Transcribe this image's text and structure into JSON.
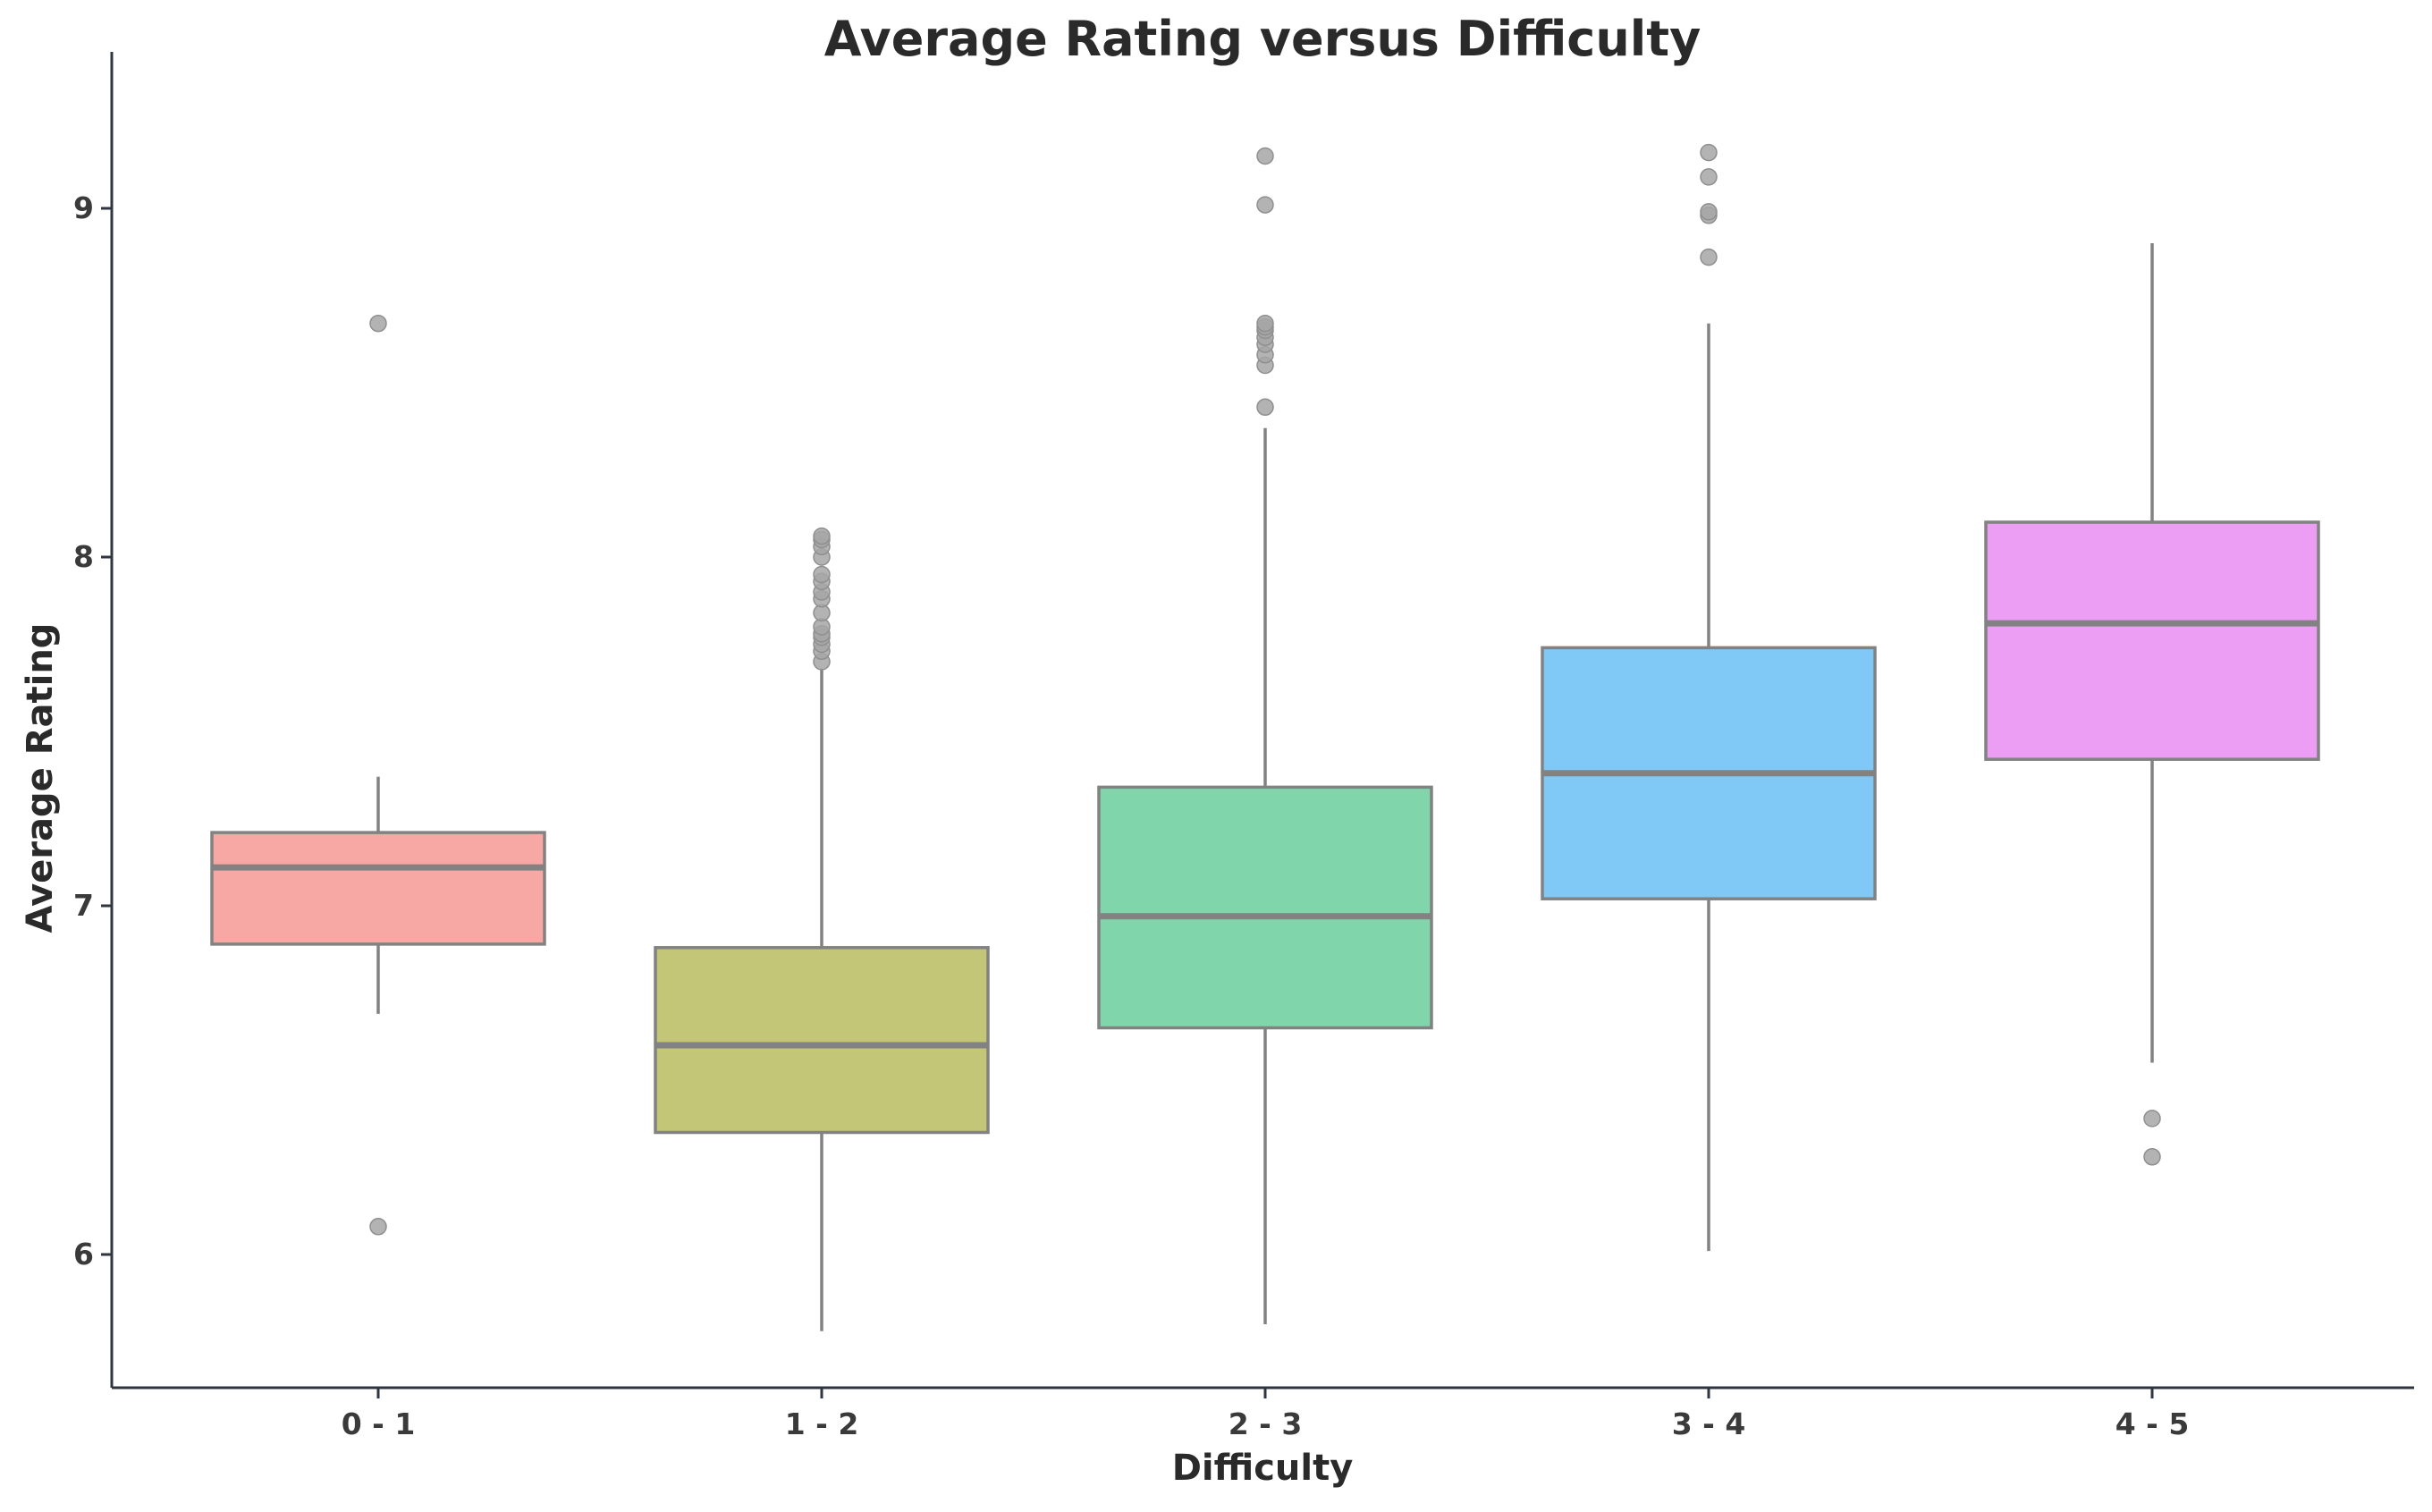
{
  "chart_data": {
    "type": "box",
    "title": "Average Rating versus Difficulty",
    "xlabel": "Difficulty",
    "ylabel": "Average Rating",
    "ylim": [
      5.75,
      9.33
    ],
    "yticks": [
      6,
      7,
      8,
      9
    ],
    "grid": false,
    "legend": "none",
    "categories": [
      "0 - 1",
      "1 - 2",
      "2 - 3",
      "3 - 4",
      "4 - 5"
    ],
    "boxes": [
      {
        "category": "0 - 1",
        "color": "#f8a8a4",
        "whisker_low": 6.69,
        "q1": 6.89,
        "median": 7.11,
        "q3": 7.21,
        "whisker_high": 7.37,
        "outliers": [
          8.67,
          6.08
        ]
      },
      {
        "category": "1 - 2",
        "color": "#c3c677",
        "whisker_low": 5.78,
        "q1": 6.35,
        "median": 6.6,
        "q3": 6.88,
        "whisker_high": 7.68,
        "outliers": [
          7.7,
          7.73,
          7.75,
          7.77,
          7.78,
          7.8,
          7.84,
          7.88,
          7.9,
          7.93,
          7.95,
          8.0,
          8.03,
          8.05,
          8.06
        ]
      },
      {
        "category": "2 - 3",
        "color": "#80d6aa",
        "whisker_low": 5.8,
        "q1": 6.65,
        "median": 6.97,
        "q3": 7.34,
        "whisker_high": 8.37,
        "outliers": [
          8.43,
          8.55,
          8.58,
          8.61,
          8.63,
          8.65,
          8.66,
          8.67,
          9.01,
          9.15
        ]
      },
      {
        "category": "3 - 4",
        "color": "#80c8f6",
        "whisker_low": 6.01,
        "q1": 7.02,
        "median": 7.38,
        "q3": 7.74,
        "whisker_high": 8.67,
        "outliers": [
          8.86,
          8.98,
          8.99,
          9.09,
          9.16
        ]
      },
      {
        "category": "4 - 5",
        "color": "#ec9df4",
        "whisker_low": 6.55,
        "q1": 7.42,
        "median": 7.81,
        "q3": 8.1,
        "whisker_high": 8.9,
        "outliers": [
          6.39,
          6.28
        ]
      }
    ],
    "line_color": "#828282",
    "outlier_color": "#a6a6a6",
    "axis_color": "#2f3640"
  }
}
